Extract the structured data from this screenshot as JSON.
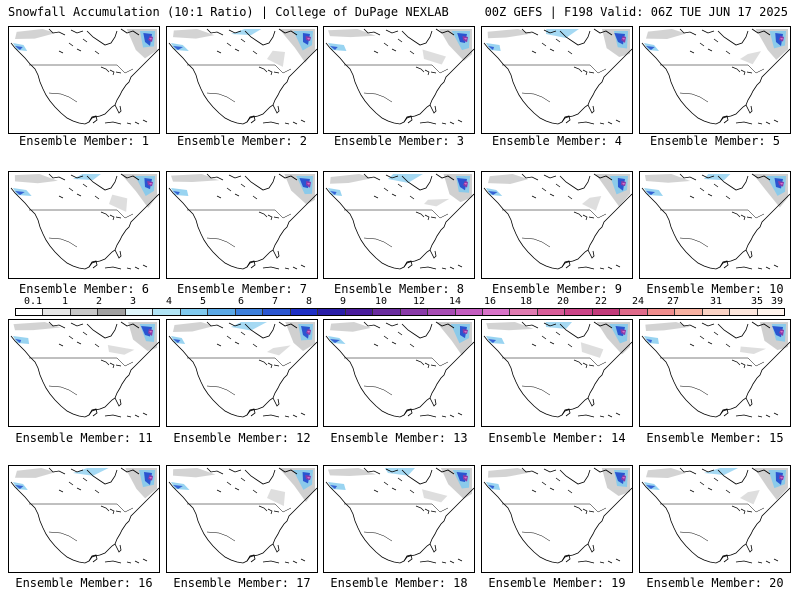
{
  "header": {
    "title_left": "Snowfall Accumulation (10:1 Ratio) | College of DuPage NEXLAB",
    "title_right": "00Z GEFS | F198 Valid: 06Z TUE JUN 17 2025"
  },
  "members": [
    {
      "label": "Ensemble Member: 1"
    },
    {
      "label": "Ensemble Member: 2"
    },
    {
      "label": "Ensemble Member: 3"
    },
    {
      "label": "Ensemble Member: 4"
    },
    {
      "label": "Ensemble Member: 5"
    },
    {
      "label": "Ensemble Member: 6"
    },
    {
      "label": "Ensemble Member: 7"
    },
    {
      "label": "Ensemble Member: 8"
    },
    {
      "label": "Ensemble Member: 9"
    },
    {
      "label": "Ensemble Member: 10"
    },
    {
      "label": "Ensemble Member: 11"
    },
    {
      "label": "Ensemble Member: 12"
    },
    {
      "label": "Ensemble Member: 13"
    },
    {
      "label": "Ensemble Member: 14"
    },
    {
      "label": "Ensemble Member: 15"
    },
    {
      "label": "Ensemble Member: 16"
    },
    {
      "label": "Ensemble Member: 17"
    },
    {
      "label": "Ensemble Member: 18"
    },
    {
      "label": "Ensemble Member: 19"
    },
    {
      "label": "Ensemble Member: 20"
    }
  ],
  "colorbar": {
    "labels": [
      "0.1",
      "1",
      "2",
      "3",
      "4",
      "5",
      "6",
      "7",
      "8",
      "9",
      "10",
      "12",
      "14",
      "16",
      "18",
      "20",
      "22",
      "24",
      "27",
      "31",
      "35",
      "39"
    ],
    "colors": [
      "#ffffff",
      "#e6e6e6",
      "#c8c8c8",
      "#a0a0a0",
      "#dff5fb",
      "#b0e4f5",
      "#7fc9ee",
      "#5aa8e6",
      "#3c7fdc",
      "#2a55d0",
      "#1e2fc4",
      "#2a1ea8",
      "#4a1c9c",
      "#6a2c9e",
      "#8a3aa8",
      "#a84cb4",
      "#c45cc0",
      "#d872c8",
      "#e07ab0",
      "#d85c98",
      "#cc4488",
      "#c23a7a",
      "#e06a8a",
      "#f08c8c",
      "#f7b0a0",
      "#fad2c4",
      "#fde6dc",
      "#fff3ec"
    ]
  },
  "map": {
    "land_color": "#ffffff",
    "boundary_color": "#000000",
    "snow_colors": [
      "#c8c8c8",
      "#7fc9ee",
      "#2a55d0",
      "#8a3aa8",
      "#d872c8"
    ]
  }
}
